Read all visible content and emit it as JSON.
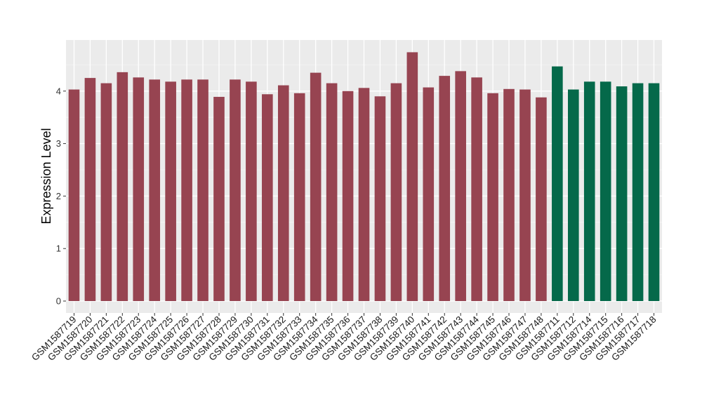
{
  "chart_data": {
    "type": "bar",
    "title": "",
    "xlabel": "",
    "ylabel": "Expression Level",
    "ylim": [
      0,
      4.9
    ],
    "yticks": [
      0,
      1,
      2,
      3,
      4
    ],
    "grid": true,
    "legend": "none",
    "categories": [
      "GSM1587719",
      "GSM1587720",
      "GSM1587721",
      "GSM1587722",
      "GSM1587723",
      "GSM1587724",
      "GSM1587725",
      "GSM1587726",
      "GSM1587727",
      "GSM1587728",
      "GSM1587729",
      "GSM1587730",
      "GSM1587731",
      "GSM1587732",
      "GSM1587733",
      "GSM1587734",
      "GSM1587735",
      "GSM1587736",
      "GSM1587737",
      "GSM1587738",
      "GSM1587739",
      "GSM1587740",
      "GSM1587741",
      "GSM1587742",
      "GSM1587743",
      "GSM1587744",
      "GSM1587745",
      "GSM1587746",
      "GSM1587747",
      "GSM1587748",
      "GSM1587711",
      "GSM1587712",
      "GSM1587714",
      "GSM1587715",
      "GSM1587716",
      "GSM1587717",
      "GSM1587718"
    ],
    "values": [
      4.03,
      4.25,
      4.15,
      4.36,
      4.26,
      4.22,
      4.18,
      4.22,
      4.22,
      3.89,
      4.22,
      4.18,
      3.94,
      4.11,
      3.96,
      4.35,
      4.15,
      4.0,
      4.06,
      3.9,
      4.15,
      4.74,
      4.07,
      4.29,
      4.38,
      4.26,
      3.96,
      4.04,
      4.03,
      3.88,
      4.47,
      4.03,
      4.18,
      4.18,
      4.09,
      4.15,
      4.15
    ],
    "groups": [
      0,
      0,
      0,
      0,
      0,
      0,
      0,
      0,
      0,
      0,
      0,
      0,
      0,
      0,
      0,
      0,
      0,
      0,
      0,
      0,
      0,
      0,
      0,
      0,
      0,
      0,
      0,
      0,
      0,
      0,
      1,
      1,
      1,
      1,
      1,
      1,
      1
    ],
    "group_colors": [
      "#974451",
      "#05694A"
    ]
  }
}
